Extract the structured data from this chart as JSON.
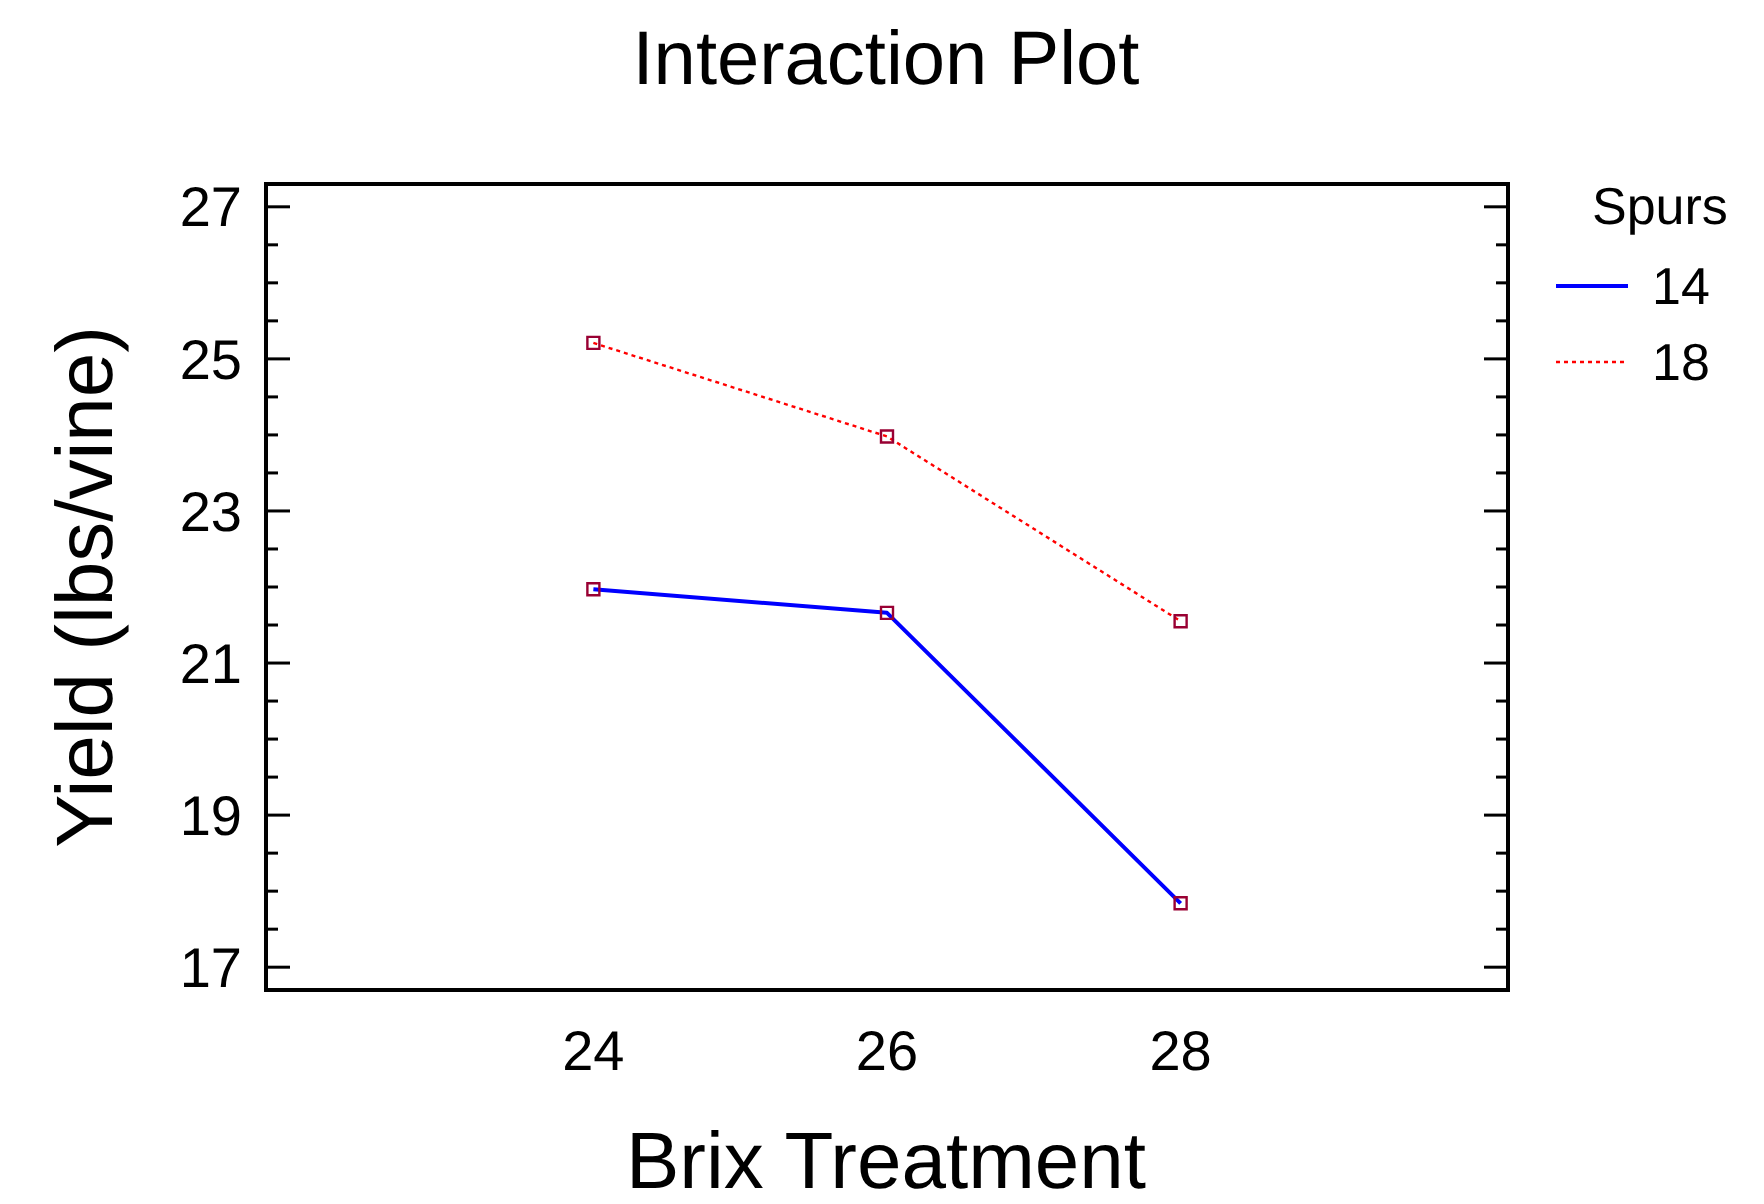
{
  "chart_data": {
    "type": "line",
    "title": "Interaction Plot",
    "xlabel": "Brix Treatment",
    "ylabel": "Yield (lbs/vine)",
    "legend_title": "Spurs",
    "x": [
      24,
      26,
      28
    ],
    "series": [
      {
        "name": "14",
        "color": "#0000ff",
        "values": [
          21.97,
          21.66,
          17.84
        ],
        "line_style": "solid"
      },
      {
        "name": "18",
        "color": "#ff0000",
        "values": [
          25.21,
          23.98,
          21.55
        ],
        "line_style": "dotted"
      }
    ],
    "xlim": [
      21.77,
      30.23
    ],
    "xticks": [
      24,
      26,
      28
    ],
    "ylim": [
      16.7,
      27.3
    ],
    "yticks": [
      17,
      {
        "value": 17.5,
        "label": null
      },
      {
        "value": 18,
        "label": null
      },
      {
        "value": 18.5,
        "label": null
      },
      19,
      {
        "value": 19.5,
        "label": null
      },
      {
        "value": 20,
        "label": null
      },
      {
        "value": 20.5,
        "label": null
      },
      21,
      {
        "value": 21.5,
        "label": null
      },
      {
        "value": 22,
        "label": null
      },
      {
        "value": 22.5,
        "label": null
      },
      23,
      {
        "value": 23.5,
        "label": null
      },
      {
        "value": 24,
        "label": null
      },
      {
        "value": 24.5,
        "label": null
      },
      25,
      {
        "value": 25.5,
        "label": null
      },
      {
        "value": 26,
        "label": null
      },
      {
        "value": 26.5,
        "label": null
      },
      27
    ],
    "marker": "square",
    "legend": "top right",
    "grid": false
  }
}
